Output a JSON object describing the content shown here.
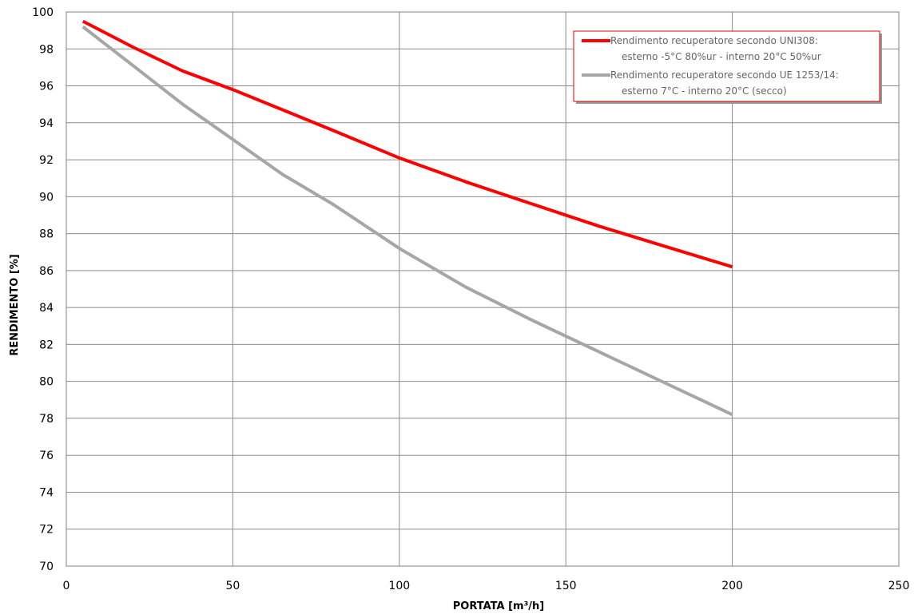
{
  "chart_data": {
    "type": "line",
    "xlabel": "PORTATA [m³/h]",
    "ylabel": "RENDIMENTO [%]",
    "xlim": [
      0,
      250
    ],
    "ylim": [
      70,
      100
    ],
    "xticks": [
      0,
      50,
      100,
      150,
      200,
      250
    ],
    "yticks": [
      70,
      72,
      74,
      76,
      78,
      80,
      82,
      84,
      86,
      88,
      90,
      92,
      94,
      96,
      98,
      100
    ],
    "grid": true,
    "legend_position": "top-right",
    "series": [
      {
        "name": "Rendimento recuperatore secondo UNI308:\nesterno -5°C 80%ur - interno 20°C 50%ur",
        "legend_lines": [
          "Rendimento recuperatore secondo UNI308:",
          "esterno -5°C 80%ur - interno 20°C 50%ur"
        ],
        "color": "#ff0000",
        "x": [
          5,
          20,
          35,
          50,
          65,
          80,
          100,
          120,
          140,
          160,
          180,
          200
        ],
        "y": [
          99.5,
          98.1,
          96.8,
          95.8,
          94.7,
          93.6,
          92.1,
          90.8,
          89.6,
          88.4,
          87.3,
          86.2
        ]
      },
      {
        "name": "Rendimento recuperatore secondo UE 1253/14:\nesterno 7°C - interno 20°C (secco)",
        "legend_lines": [
          "Rendimento recuperatore secondo UE 1253/14:",
          "esterno 7°C - interno 20°C (secco)"
        ],
        "color": "#a6a6a6",
        "x": [
          5,
          20,
          35,
          50,
          65,
          80,
          100,
          120,
          140,
          160,
          180,
          200
        ],
        "y": [
          99.2,
          97.1,
          95.0,
          93.1,
          91.2,
          89.6,
          87.2,
          85.1,
          83.3,
          81.6,
          79.9,
          78.2
        ]
      }
    ]
  }
}
